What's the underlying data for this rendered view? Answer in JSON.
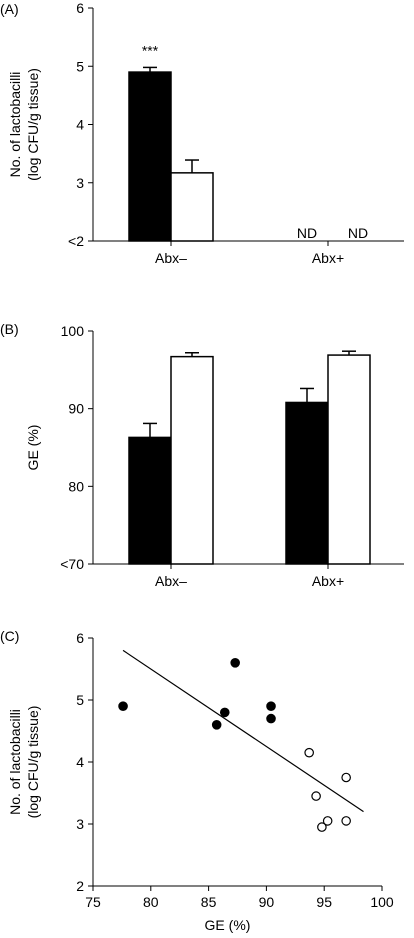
{
  "chart_data": [
    {
      "panel": "(A)",
      "type": "bar",
      "categories": [
        "Abx–",
        "Abx+"
      ],
      "series": [
        {
          "fill": "black",
          "values": [
            4.9,
            null
          ],
          "errors": [
            0.08,
            null
          ]
        },
        {
          "fill": "white",
          "values": [
            3.17,
            null
          ],
          "errors": [
            0.22,
            null
          ]
        }
      ],
      "ylim": [
        2,
        6
      ],
      "yticks": [
        2,
        3,
        4,
        5,
        6
      ],
      "ytick_labels": [
        "<2",
        "3",
        "4",
        "5",
        "6"
      ],
      "ylabel_lines": [
        "No. of lactobacilli",
        "(log CFU/g tissue)"
      ],
      "annotations": {
        "significance": "***",
        "not_detected": [
          "ND",
          "ND"
        ]
      }
    },
    {
      "panel": "(B)",
      "type": "bar",
      "categories": [
        "Abx–",
        "Abx+"
      ],
      "series": [
        {
          "fill": "black",
          "values": [
            86.3,
            90.8
          ],
          "errors": [
            1.8,
            1.8
          ]
        },
        {
          "fill": "white",
          "values": [
            96.7,
            96.9
          ],
          "errors": [
            0.5,
            0.5
          ]
        }
      ],
      "ylim": [
        70,
        100
      ],
      "yticks": [
        70,
        80,
        90,
        100
      ],
      "ytick_labels": [
        "<70",
        "80",
        "90",
        "100"
      ],
      "ylabel": "GE (%)"
    },
    {
      "panel": "(C)",
      "type": "scatter",
      "series": [
        {
          "marker": "filled",
          "points": [
            [
              77.6,
              4.9
            ],
            [
              85.7,
              4.6
            ],
            [
              86.4,
              4.8
            ],
            [
              87.3,
              5.6
            ],
            [
              90.4,
              4.9
            ],
            [
              90.4,
              4.7
            ]
          ]
        },
        {
          "marker": "open",
          "points": [
            [
              93.7,
              4.15
            ],
            [
              94.3,
              3.45
            ],
            [
              94.8,
              2.95
            ],
            [
              95.3,
              3.05
            ],
            [
              96.9,
              3.75
            ],
            [
              96.9,
              3.05
            ]
          ]
        }
      ],
      "trendline": [
        [
          77.6,
          5.8
        ],
        [
          98.4,
          3.2
        ]
      ],
      "xlim": [
        75,
        100
      ],
      "ylim": [
        2,
        6
      ],
      "xticks": [
        75,
        80,
        85,
        90,
        95,
        100
      ],
      "yticks": [
        2,
        3,
        4,
        5,
        6
      ],
      "xlabel": "GE (%)",
      "ylabel_lines": [
        "No. of lactobacilli",
        "(log CFU/g tissue)"
      ]
    }
  ]
}
